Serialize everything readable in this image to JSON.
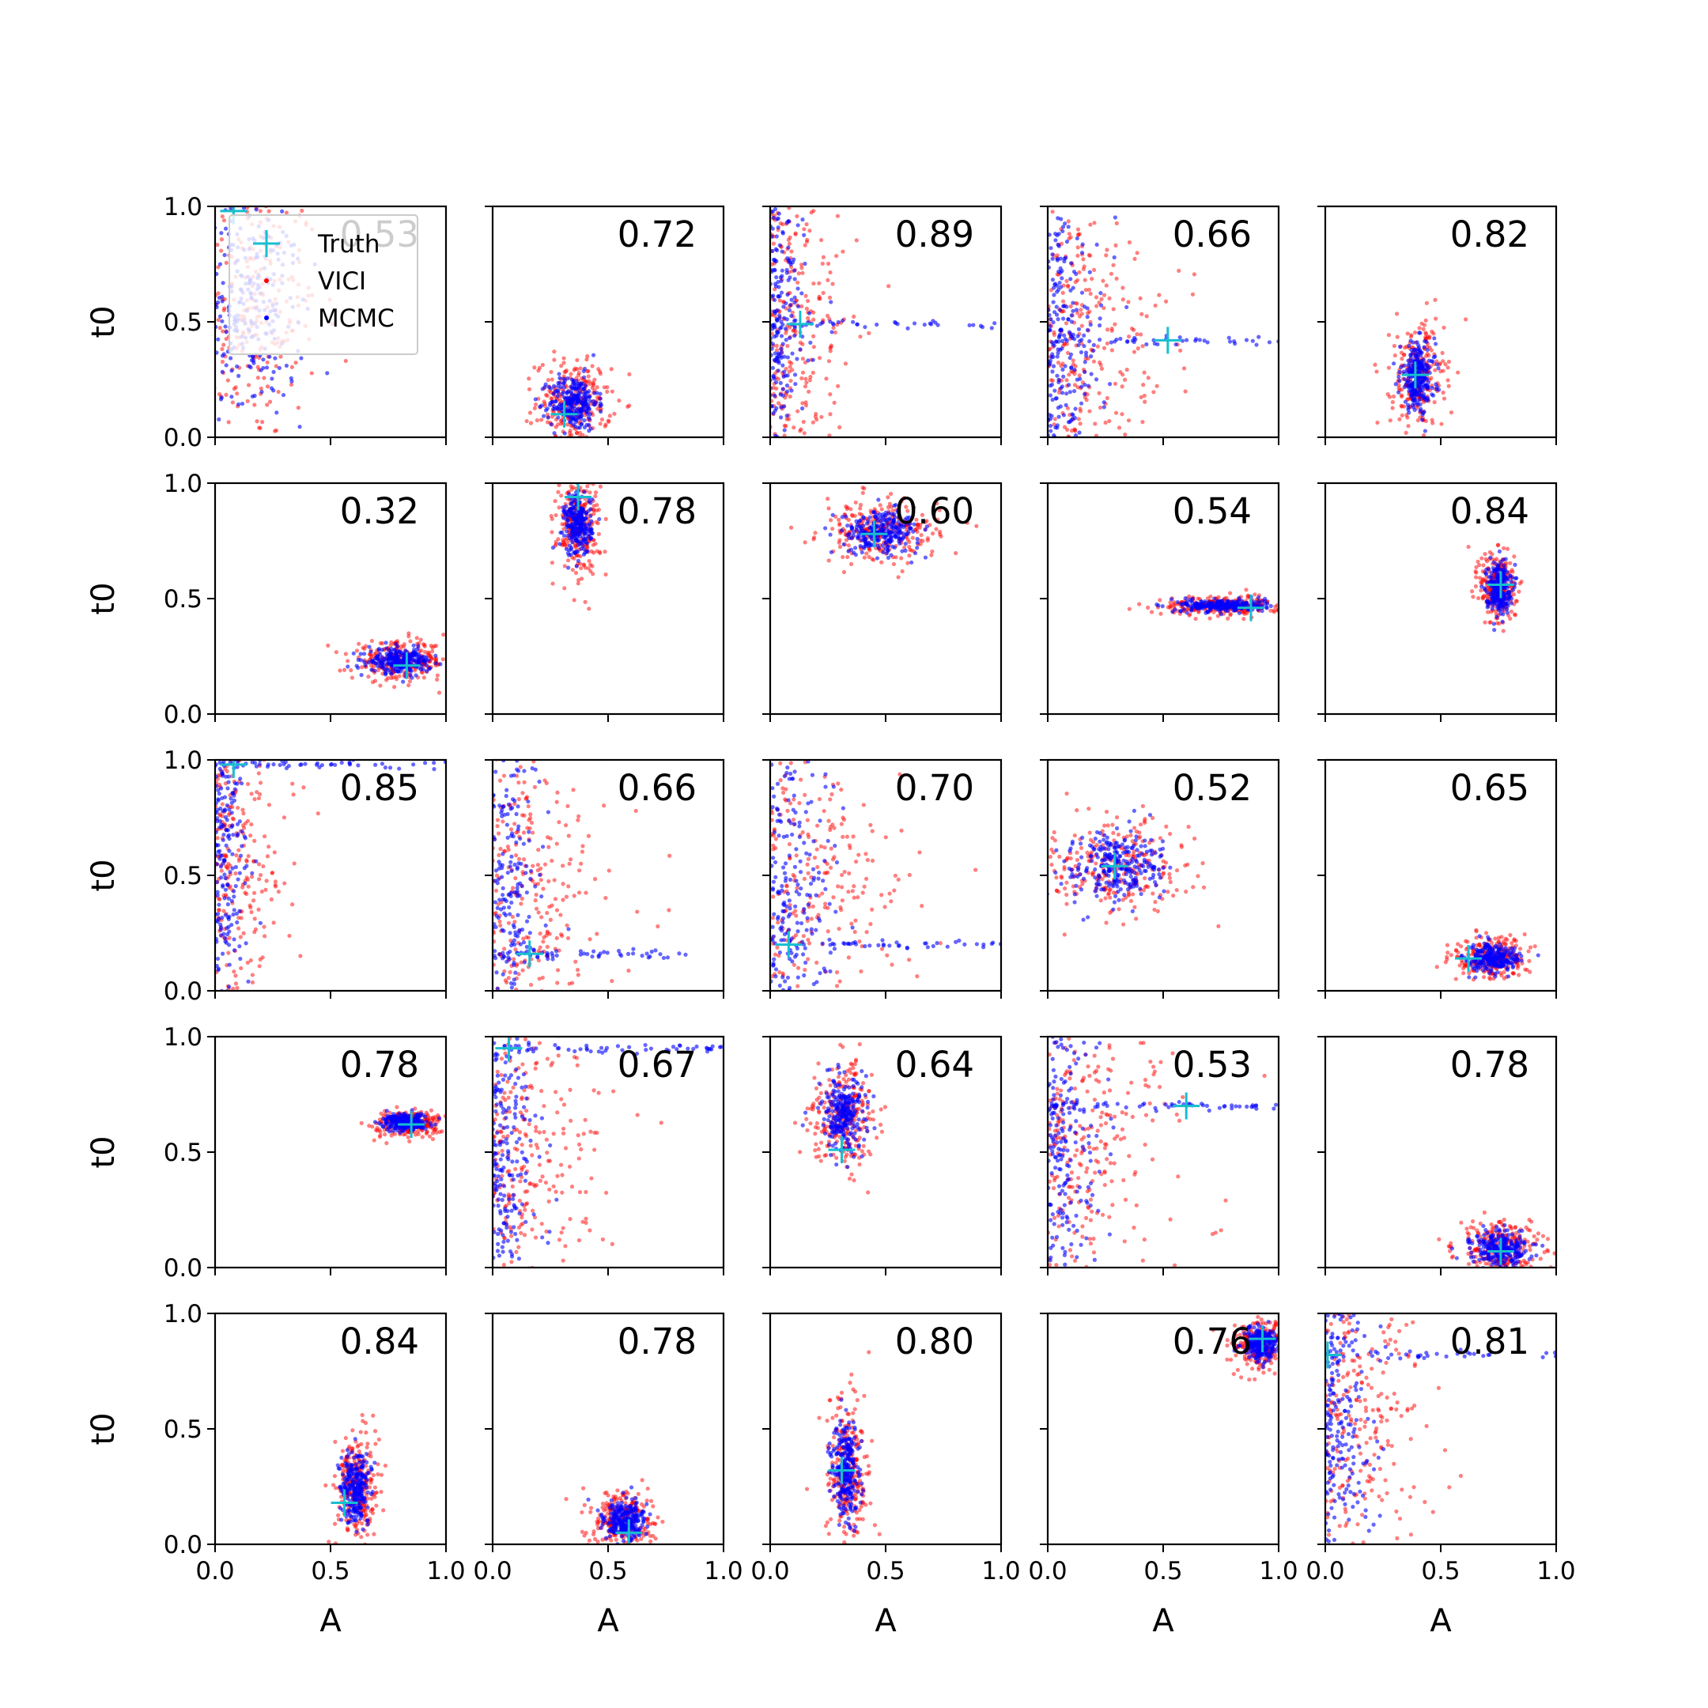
{
  "chart_data": {
    "type": "scatter",
    "layout": "5x5 grid of subplots",
    "xlabel": "A",
    "ylabel": "t0",
    "xlim": [
      0.0,
      1.0
    ],
    "ylim": [
      0.0,
      1.0
    ],
    "x_tick_labels": [
      "0.0",
      "0.5",
      "1.0"
    ],
    "y_tick_labels": [
      "0.0",
      "0.5",
      "1.0"
    ],
    "legend": {
      "location": "upper-left of first panel",
      "entries": [
        {
          "label": "Truth",
          "marker": "+",
          "color": "#17becf"
        },
        {
          "label": "VICI",
          "marker": "point",
          "color": "#ff0000"
        },
        {
          "label": "MCMC",
          "marker": "point",
          "color": "#0000ff"
        }
      ]
    },
    "series_colors": {
      "truth": "#17becf",
      "vici": "#ff0000",
      "mcmc": "#0000ff"
    },
    "panels": [
      {
        "overlap": "0.53",
        "truth": [
          0.08,
          0.98
        ],
        "pattern": "broad",
        "cx": 0.15,
        "cy": 0.55,
        "sx": 0.15,
        "sy": 0.3
      },
      {
        "overlap": "0.72",
        "truth": [
          0.31,
          0.1
        ],
        "pattern": "blob",
        "cx": 0.35,
        "cy": 0.15,
        "sx": 0.07,
        "sy": 0.08
      },
      {
        "overlap": "0.89",
        "truth": [
          0.13,
          0.49
        ],
        "pattern": "edge",
        "cx": 0.05,
        "cy": 0.5,
        "sx": 0.1,
        "sy": 0.3
      },
      {
        "overlap": "0.66",
        "truth": [
          0.52,
          0.42
        ],
        "pattern": "edge",
        "cx": 0.12,
        "cy": 0.4,
        "sx": 0.15,
        "sy": 0.25
      },
      {
        "overlap": "0.82",
        "truth": [
          0.39,
          0.27
        ],
        "pattern": "blob",
        "cx": 0.4,
        "cy": 0.26,
        "sx": 0.05,
        "sy": 0.1
      },
      {
        "overlap": "0.32",
        "truth": [
          0.83,
          0.21
        ],
        "pattern": "blob",
        "cx": 0.8,
        "cy": 0.23,
        "sx": 0.09,
        "sy": 0.035
      },
      {
        "overlap": "0.78",
        "truth": [
          0.37,
          0.94
        ],
        "pattern": "blob",
        "cx": 0.37,
        "cy": 0.82,
        "sx": 0.04,
        "sy": 0.09
      },
      {
        "overlap": "0.60",
        "truth": [
          0.45,
          0.78
        ],
        "pattern": "blob",
        "cx": 0.48,
        "cy": 0.79,
        "sx": 0.11,
        "sy": 0.06
      },
      {
        "overlap": "0.54",
        "truth": [
          0.88,
          0.46
        ],
        "pattern": "blob",
        "cx": 0.76,
        "cy": 0.47,
        "sx": 0.12,
        "sy": 0.018
      },
      {
        "overlap": "0.84",
        "truth": [
          0.76,
          0.56
        ],
        "pattern": "blob",
        "cx": 0.75,
        "cy": 0.55,
        "sx": 0.035,
        "sy": 0.07
      },
      {
        "overlap": "0.85",
        "truth": [
          0.08,
          0.98
        ],
        "pattern": "edge",
        "cx": 0.06,
        "cy": 0.6,
        "sx": 0.1,
        "sy": 0.3
      },
      {
        "overlap": "0.66",
        "truth": [
          0.16,
          0.16
        ],
        "pattern": "edge",
        "cx": 0.08,
        "cy": 0.4,
        "sx": 0.15,
        "sy": 0.3
      },
      {
        "overlap": "0.70",
        "truth": [
          0.08,
          0.2
        ],
        "pattern": "edge",
        "cx": 0.1,
        "cy": 0.45,
        "sx": 0.18,
        "sy": 0.28
      },
      {
        "overlap": "0.52",
        "truth": [
          0.29,
          0.54
        ],
        "pattern": "blob",
        "cx": 0.3,
        "cy": 0.55,
        "sx": 0.14,
        "sy": 0.1
      },
      {
        "overlap": "0.65",
        "truth": [
          0.62,
          0.14
        ],
        "pattern": "blob",
        "cx": 0.72,
        "cy": 0.14,
        "sx": 0.07,
        "sy": 0.04
      },
      {
        "overlap": "0.78",
        "truth": [
          0.85,
          0.62
        ],
        "pattern": "blob",
        "cx": 0.83,
        "cy": 0.63,
        "sx": 0.06,
        "sy": 0.025
      },
      {
        "overlap": "0.67",
        "truth": [
          0.07,
          0.95
        ],
        "pattern": "edge",
        "cx": 0.07,
        "cy": 0.5,
        "sx": 0.14,
        "sy": 0.28
      },
      {
        "overlap": "0.64",
        "truth": [
          0.31,
          0.51
        ],
        "pattern": "blob",
        "cx": 0.32,
        "cy": 0.67,
        "sx": 0.06,
        "sy": 0.1
      },
      {
        "overlap": "0.53",
        "truth": [
          0.6,
          0.7
        ],
        "pattern": "edge",
        "cx": 0.12,
        "cy": 0.55,
        "sx": 0.16,
        "sy": 0.28
      },
      {
        "overlap": "0.78",
        "truth": [
          0.76,
          0.07
        ],
        "pattern": "blob",
        "cx": 0.76,
        "cy": 0.08,
        "sx": 0.08,
        "sy": 0.05
      },
      {
        "overlap": "0.84",
        "truth": [
          0.56,
          0.18
        ],
        "pattern": "blob",
        "cx": 0.61,
        "cy": 0.25,
        "sx": 0.04,
        "sy": 0.1
      },
      {
        "overlap": "0.78",
        "truth": [
          0.59,
          0.05
        ],
        "pattern": "blob",
        "cx": 0.57,
        "cy": 0.1,
        "sx": 0.06,
        "sy": 0.06
      },
      {
        "overlap": "0.80",
        "truth": [
          0.31,
          0.32
        ],
        "pattern": "blob",
        "cx": 0.33,
        "cy": 0.3,
        "sx": 0.04,
        "sy": 0.15
      },
      {
        "overlap": "0.76",
        "truth": [
          0.93,
          0.89
        ],
        "pattern": "blob",
        "cx": 0.92,
        "cy": 0.87,
        "sx": 0.05,
        "sy": 0.05
      },
      {
        "overlap": "0.81",
        "truth": [
          0.01,
          0.82
        ],
        "pattern": "edge",
        "cx": 0.05,
        "cy": 0.55,
        "sx": 0.14,
        "sy": 0.3
      }
    ]
  }
}
